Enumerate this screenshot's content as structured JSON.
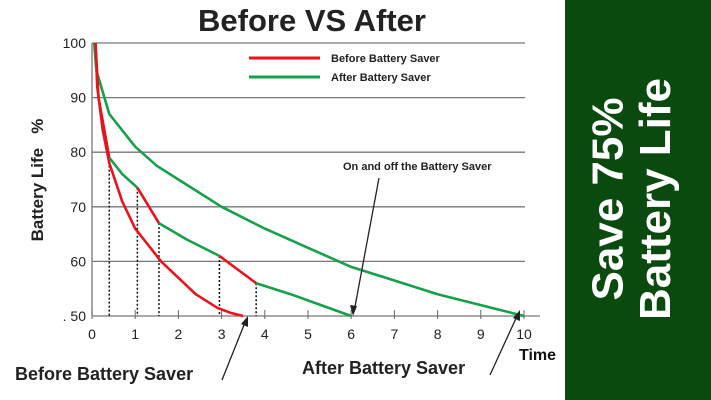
{
  "chart_data": {
    "type": "line",
    "title": "Before VS After",
    "xlabel": "Time",
    "ylabel": "Battery Life   %",
    "xlim": [
      0,
      10
    ],
    "ylim": [
      50,
      100
    ],
    "xticks": [
      "0",
      "1",
      "2",
      "3",
      "4",
      "5",
      "6",
      "7",
      "8",
      "9",
      "10"
    ],
    "yticks": [
      "100",
      "90",
      "80",
      "70",
      "60",
      ". 50"
    ],
    "grid": true,
    "legend_position": "top-right",
    "legend": [
      {
        "name": "Before Battery Saver",
        "color": "#e8141c"
      },
      {
        "name": "After Battery Saver",
        "color": "#17a04a"
      }
    ],
    "series": [
      {
        "name": "Before Battery Saver",
        "color": "#e8141c",
        "x": [
          0.08,
          0.12,
          0.25,
          0.4,
          0.7,
          1.0,
          1.3,
          1.6,
          2.0,
          2.4,
          2.9,
          3.2,
          3.5
        ],
        "y": [
          100,
          92,
          84,
          78,
          71,
          66,
          63,
          60,
          57,
          54,
          51.5,
          50.6,
          50
        ]
      },
      {
        "name": "After Battery Saver",
        "color": "#17a04a",
        "x": [
          0.05,
          0.1,
          0.4,
          1,
          1.5,
          2,
          3,
          4,
          5,
          6,
          7,
          8,
          9,
          10
        ],
        "y": [
          100,
          95,
          87,
          81,
          77.5,
          75,
          70,
          66,
          62.5,
          59,
          56.5,
          54,
          52,
          50
        ]
      }
    ],
    "on_off_segments": [
      {
        "color": "#e8141c",
        "x": [
          0.08,
          0.15,
          0.4
        ],
        "y": [
          100,
          90,
          79
        ]
      },
      {
        "color": "#17a04a",
        "x": [
          0.4,
          0.7,
          1.05
        ],
        "y": [
          79,
          76,
          73.5
        ]
      },
      {
        "color": "#e8141c",
        "x": [
          1.05,
          1.55
        ],
        "y": [
          73.5,
          67
        ]
      },
      {
        "color": "#17a04a",
        "x": [
          1.55,
          2.2,
          2.95
        ],
        "y": [
          67,
          64,
          61
        ]
      },
      {
        "color": "#e8141c",
        "x": [
          2.95,
          3.8
        ],
        "y": [
          61,
          56
        ]
      },
      {
        "color": "#17a04a",
        "x": [
          3.8,
          4.6,
          5.3,
          6
        ],
        "y": [
          56,
          54,
          52,
          50
        ]
      }
    ],
    "dotted_markers_x": [
      0.4,
      1.05,
      1.55,
      2.95,
      3.8
    ],
    "annotations": {
      "on_off": "On and off the Battery Saver",
      "before": "Before Battery Saver",
      "after": "After Battery Saver"
    }
  },
  "banner": {
    "line1": "Save 75%",
    "line2": "Battery Life",
    "color": "#0b4a0e"
  }
}
